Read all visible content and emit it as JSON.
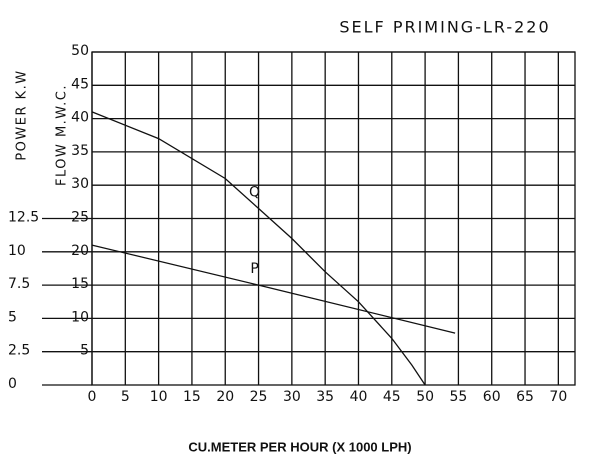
{
  "chart_data": {
    "type": "line",
    "title": "SELF PRIMING-LR-220",
    "x_label": "CU.METER PER HOUR (X 1000 LPH)",
    "y_label": "FLOW M.W.C.",
    "y2_label": "POWER K.W",
    "xlim": [
      0,
      72.5
    ],
    "xticks": [
      0,
      5,
      10,
      15,
      20,
      25,
      30,
      35,
      40,
      45,
      50,
      55,
      60,
      65,
      70
    ],
    "ylim": [
      0,
      50
    ],
    "yticks": [
      5,
      10,
      15,
      20,
      25,
      30,
      35,
      40,
      45,
      50
    ],
    "y2lim": [
      0,
      25
    ],
    "y2ticks": [
      0,
      2.5,
      5,
      7.5,
      10,
      12.5
    ],
    "grid": true,
    "series": [
      {
        "name": "Q",
        "color": "#111111",
        "x": [
          0,
          10,
          20,
          25,
          30,
          35,
          40,
          45,
          48,
          50
        ],
        "values": [
          41,
          37,
          31,
          26.5,
          22,
          17,
          12.5,
          7,
          3,
          0
        ]
      },
      {
        "name": "P",
        "color": "#111111",
        "axis": "y2",
        "x": [
          0,
          25,
          54.5
        ],
        "values": [
          10.5,
          7.5,
          3.9
        ]
      }
    ]
  }
}
